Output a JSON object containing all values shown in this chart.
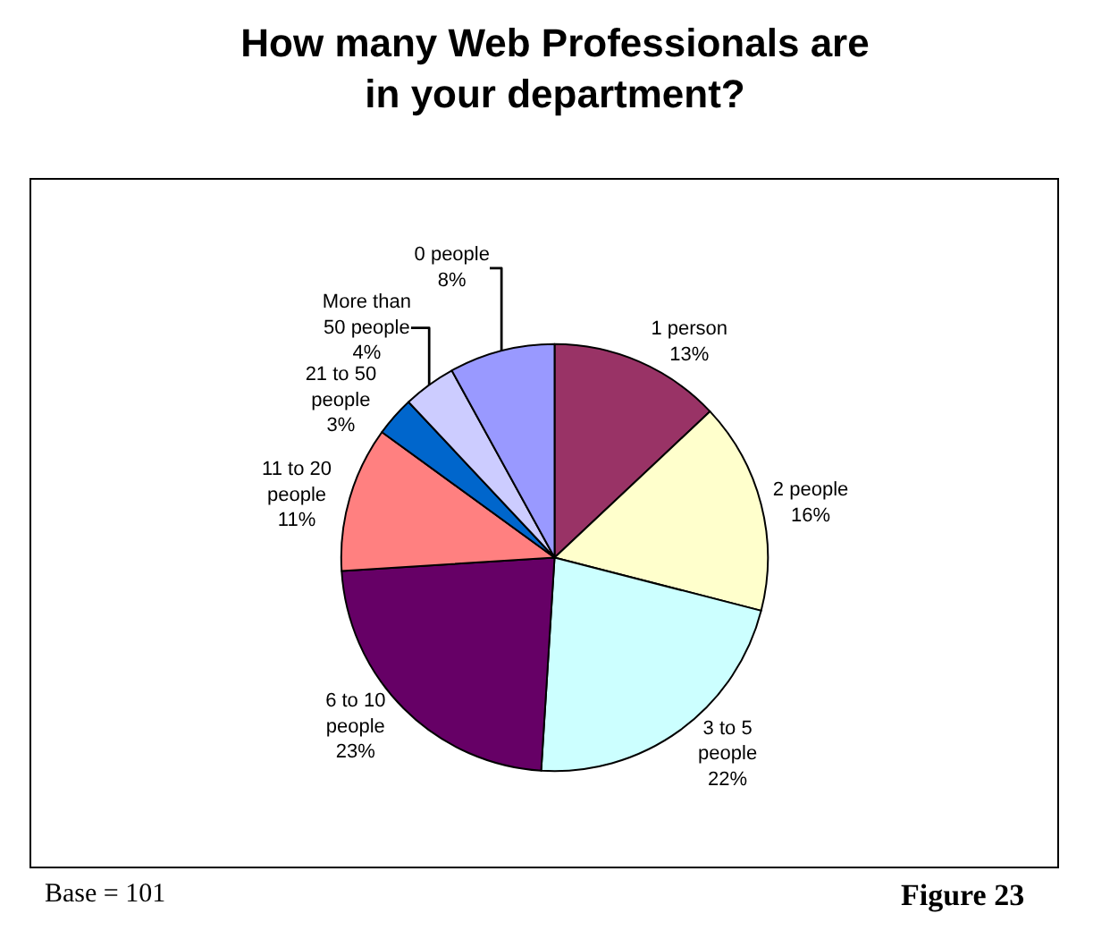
{
  "chart_data": {
    "type": "pie",
    "title": "How many Web Professionals are\nin your department?",
    "categories": [
      "1 person",
      "2 people",
      "3 to 5 people",
      "6 to 10 people",
      "11 to 20 people",
      "21 to 50 people",
      "More than 50 people",
      "0 people"
    ],
    "values": [
      13,
      16,
      22,
      23,
      11,
      3,
      4,
      8
    ],
    "value_labels": [
      "13%",
      "16%",
      "22%",
      "23%",
      "11%",
      "3%",
      "4%",
      "8%"
    ],
    "colors": [
      "#993366",
      "#ffffcc",
      "#ccffff",
      "#660066",
      "#ff8080",
      "#0066cc",
      "#ccccff",
      "#9999ff"
    ],
    "legend": false,
    "annotations": [
      "Base = 101",
      "Figure 23"
    ]
  }
}
